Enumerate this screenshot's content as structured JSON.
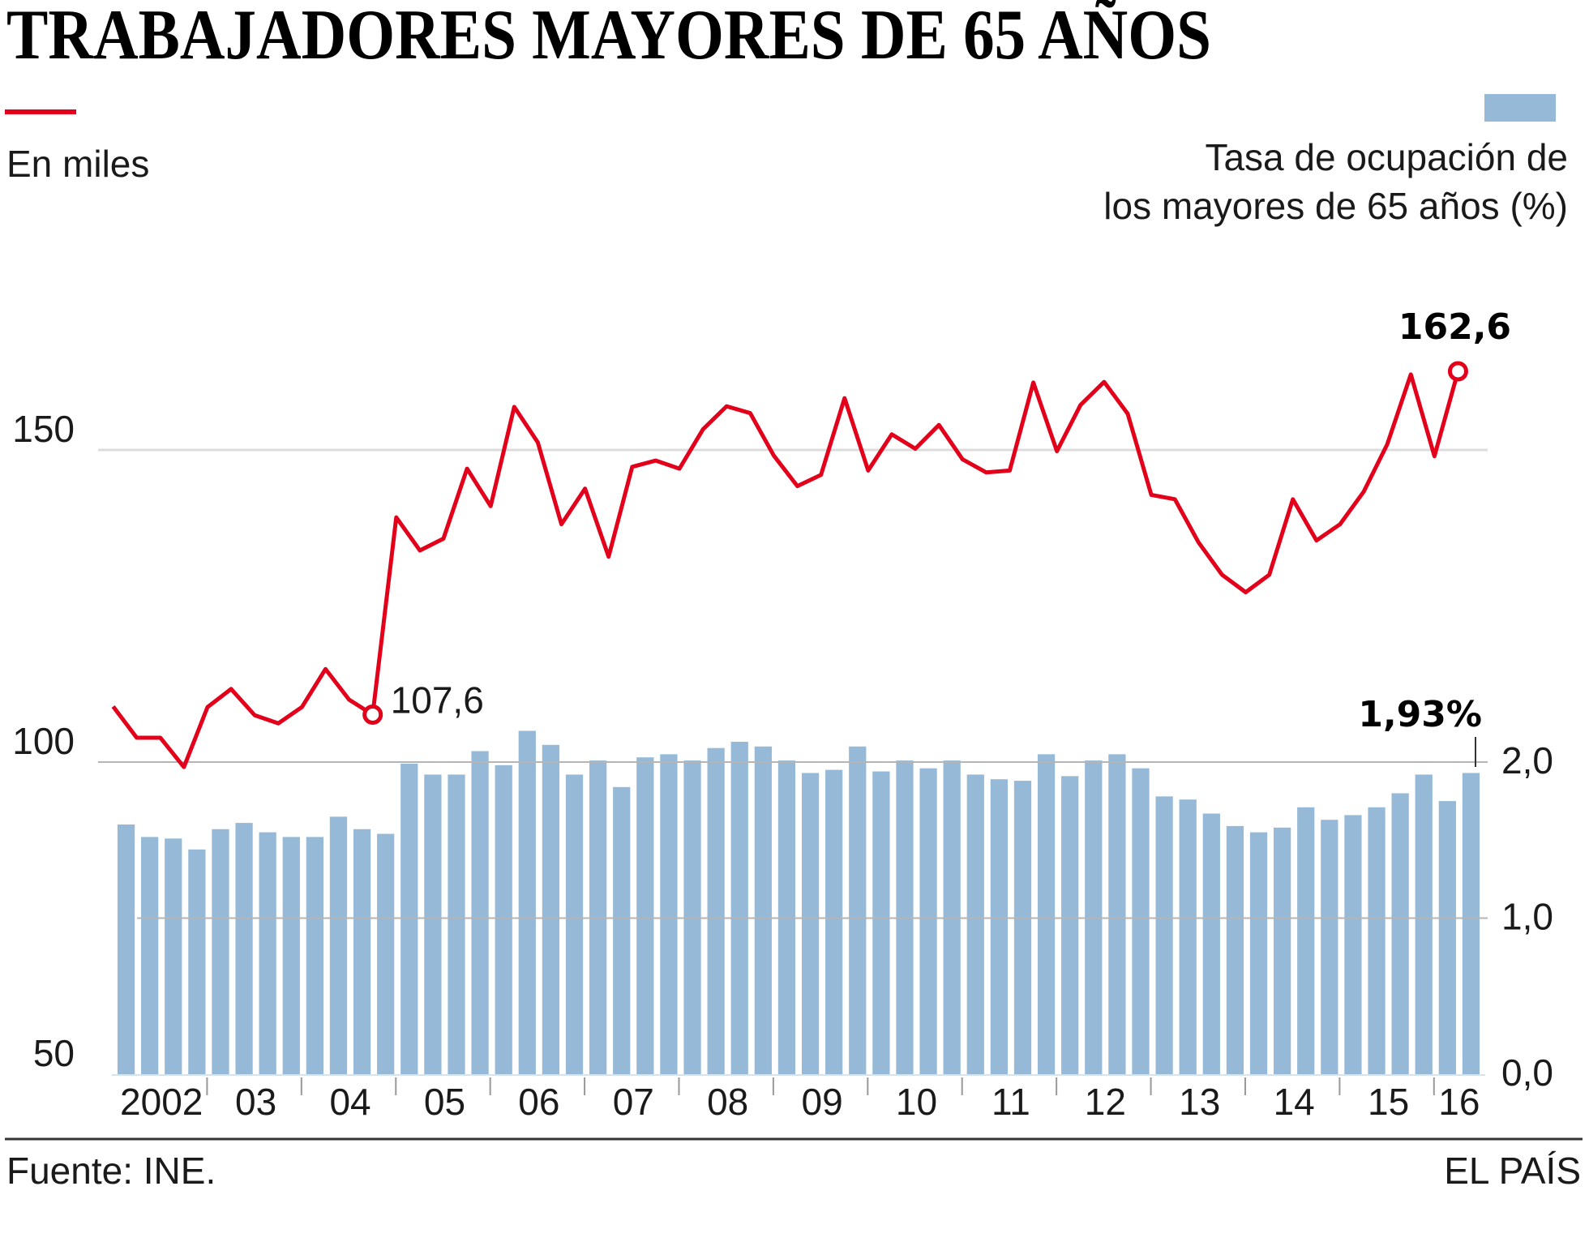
{
  "title": "TRABAJADORES MAYORES DE 65 AÑOS",
  "source": "Fuente: INE.",
  "brand": "EL PAÍS",
  "chart_data": {
    "type": "bar+line",
    "title": "TRABAJADORES MAYORES DE 65 AÑOS",
    "categories_year_labels": [
      "2002",
      "03",
      "04",
      "05",
      "06",
      "07",
      "08",
      "09",
      "10",
      "11",
      "12",
      "13",
      "14",
      "15",
      "16"
    ],
    "periods_per_year": 4,
    "colors": {
      "line": "#e2001a",
      "bars": "#95b9d6",
      "grid_light": "#dcdcdc",
      "grid": "#b5b5b5"
    },
    "left_axis": {
      "label": "En miles",
      "ticks": [
        "150",
        "100",
        "50"
      ],
      "tick_values": [
        150,
        100,
        50
      ],
      "range": [
        50,
        170
      ]
    },
    "right_axis": {
      "label_line1": "Tasa de ocupación de",
      "label_line2": "los mayores de 65 años (%)",
      "ticks": [
        "2,0",
        "1,0",
        "0,0"
      ],
      "tick_values": [
        2,
        1,
        0
      ],
      "range": [
        0,
        2.3
      ]
    },
    "series": [
      {
        "name": "En miles",
        "type": "line",
        "axis": "left",
        "values": [
          108.9,
          103.9,
          103.9,
          99.2,
          108.8,
          111.7,
          107.5,
          106.2,
          108.8,
          114.9,
          110.0,
          107.6,
          139.2,
          133.9,
          135.8,
          147.0,
          141.0,
          156.9,
          151.2,
          138.1,
          143.8,
          132.9,
          147.3,
          148.3,
          147.0,
          153.3,
          157.0,
          155.9,
          149.1,
          144.2,
          146.0,
          158.3,
          146.7,
          152.5,
          150.2,
          154.0,
          148.5,
          146.4,
          146.7,
          160.8,
          149.8,
          157.2,
          160.9,
          155.8,
          142.8,
          142.1,
          135.2,
          130.0,
          127.2,
          130.0,
          142.1,
          135.5,
          138.1,
          143.3,
          150.9,
          162.1,
          149.0,
          162.6
        ]
      },
      {
        "name": "Tasa de ocupación de los mayores de 65 años (%)",
        "type": "bar",
        "axis": "right",
        "values": [
          1.6,
          1.52,
          1.51,
          1.44,
          1.57,
          1.61,
          1.55,
          1.52,
          1.52,
          1.65,
          1.57,
          1.54,
          1.99,
          1.92,
          1.92,
          2.07,
          1.98,
          2.2,
          2.11,
          1.92,
          2.01,
          1.84,
          2.03,
          2.05,
          2.01,
          2.09,
          2.13,
          2.1,
          2.01,
          1.93,
          1.95,
          2.1,
          1.94,
          2.01,
          1.96,
          2.01,
          1.92,
          1.89,
          1.88,
          2.05,
          1.91,
          2.01,
          2.05,
          1.96,
          1.78,
          1.76,
          1.67,
          1.59,
          1.55,
          1.58,
          1.71,
          1.63,
          1.66,
          1.71,
          1.8,
          1.92,
          1.75,
          1.93
        ]
      }
    ],
    "annotations": {
      "line_min_label": "107,6",
      "line_last_label": "162,6",
      "bar_last_label": "1,93%"
    }
  }
}
